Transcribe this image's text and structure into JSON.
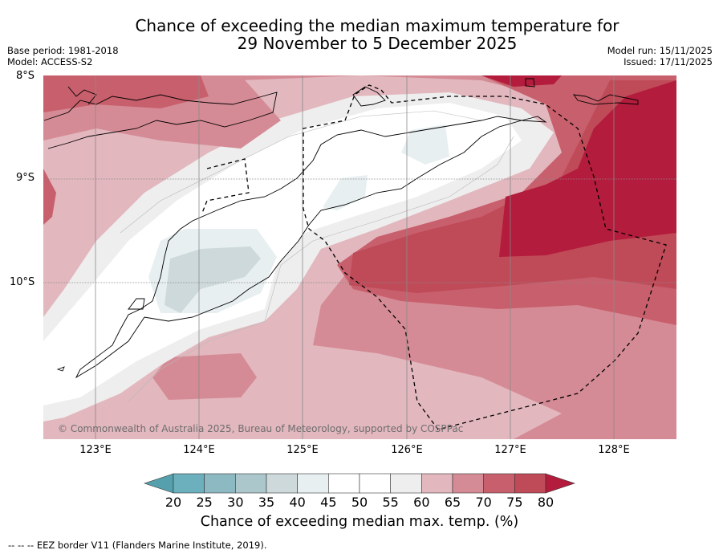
{
  "title": {
    "line1": "Chance of exceeding the median maximum temperature for",
    "line2": "29 November to 5 December 2025"
  },
  "meta": {
    "base_period": "Base period: 1981-2018",
    "model": "Model: ACCESS-S2",
    "model_run": "Model run: 15/11/2025",
    "issued": "Issued: 17/11/2025"
  },
  "axes": {
    "latitudes": [
      "8°S",
      "9°S",
      "10°S"
    ],
    "longitudes": [
      "123°E",
      "124°E",
      "125°E",
      "126°E",
      "127°E",
      "128°E"
    ]
  },
  "colorbar": {
    "ticks": [
      "20",
      "25",
      "30",
      "35",
      "40",
      "45",
      "50",
      "55",
      "60",
      "65",
      "70",
      "75",
      "80"
    ],
    "colors": [
      "#56a0ad",
      "#6cb0bd",
      "#8db9c3",
      "#acc7cc",
      "#cdd9db",
      "#e8eff1",
      "#ffffff",
      "#ffffff",
      "#eeeeee",
      "#e2b7be",
      "#d58b95",
      "#c85f6c",
      "#bf4a58",
      "#b31c3c"
    ],
    "label": "Chance of exceeding median max. temp. (%)"
  },
  "credit": "© Commonwealth of Australia 2025, Bureau of Meteorology, supported by COSPPac",
  "footnote": "--  --  -- EEZ border V11 (Flanders Marine Institute, 2019).",
  "colors": {
    "gridline": "#8a8a8a",
    "coast": "#000000"
  }
}
